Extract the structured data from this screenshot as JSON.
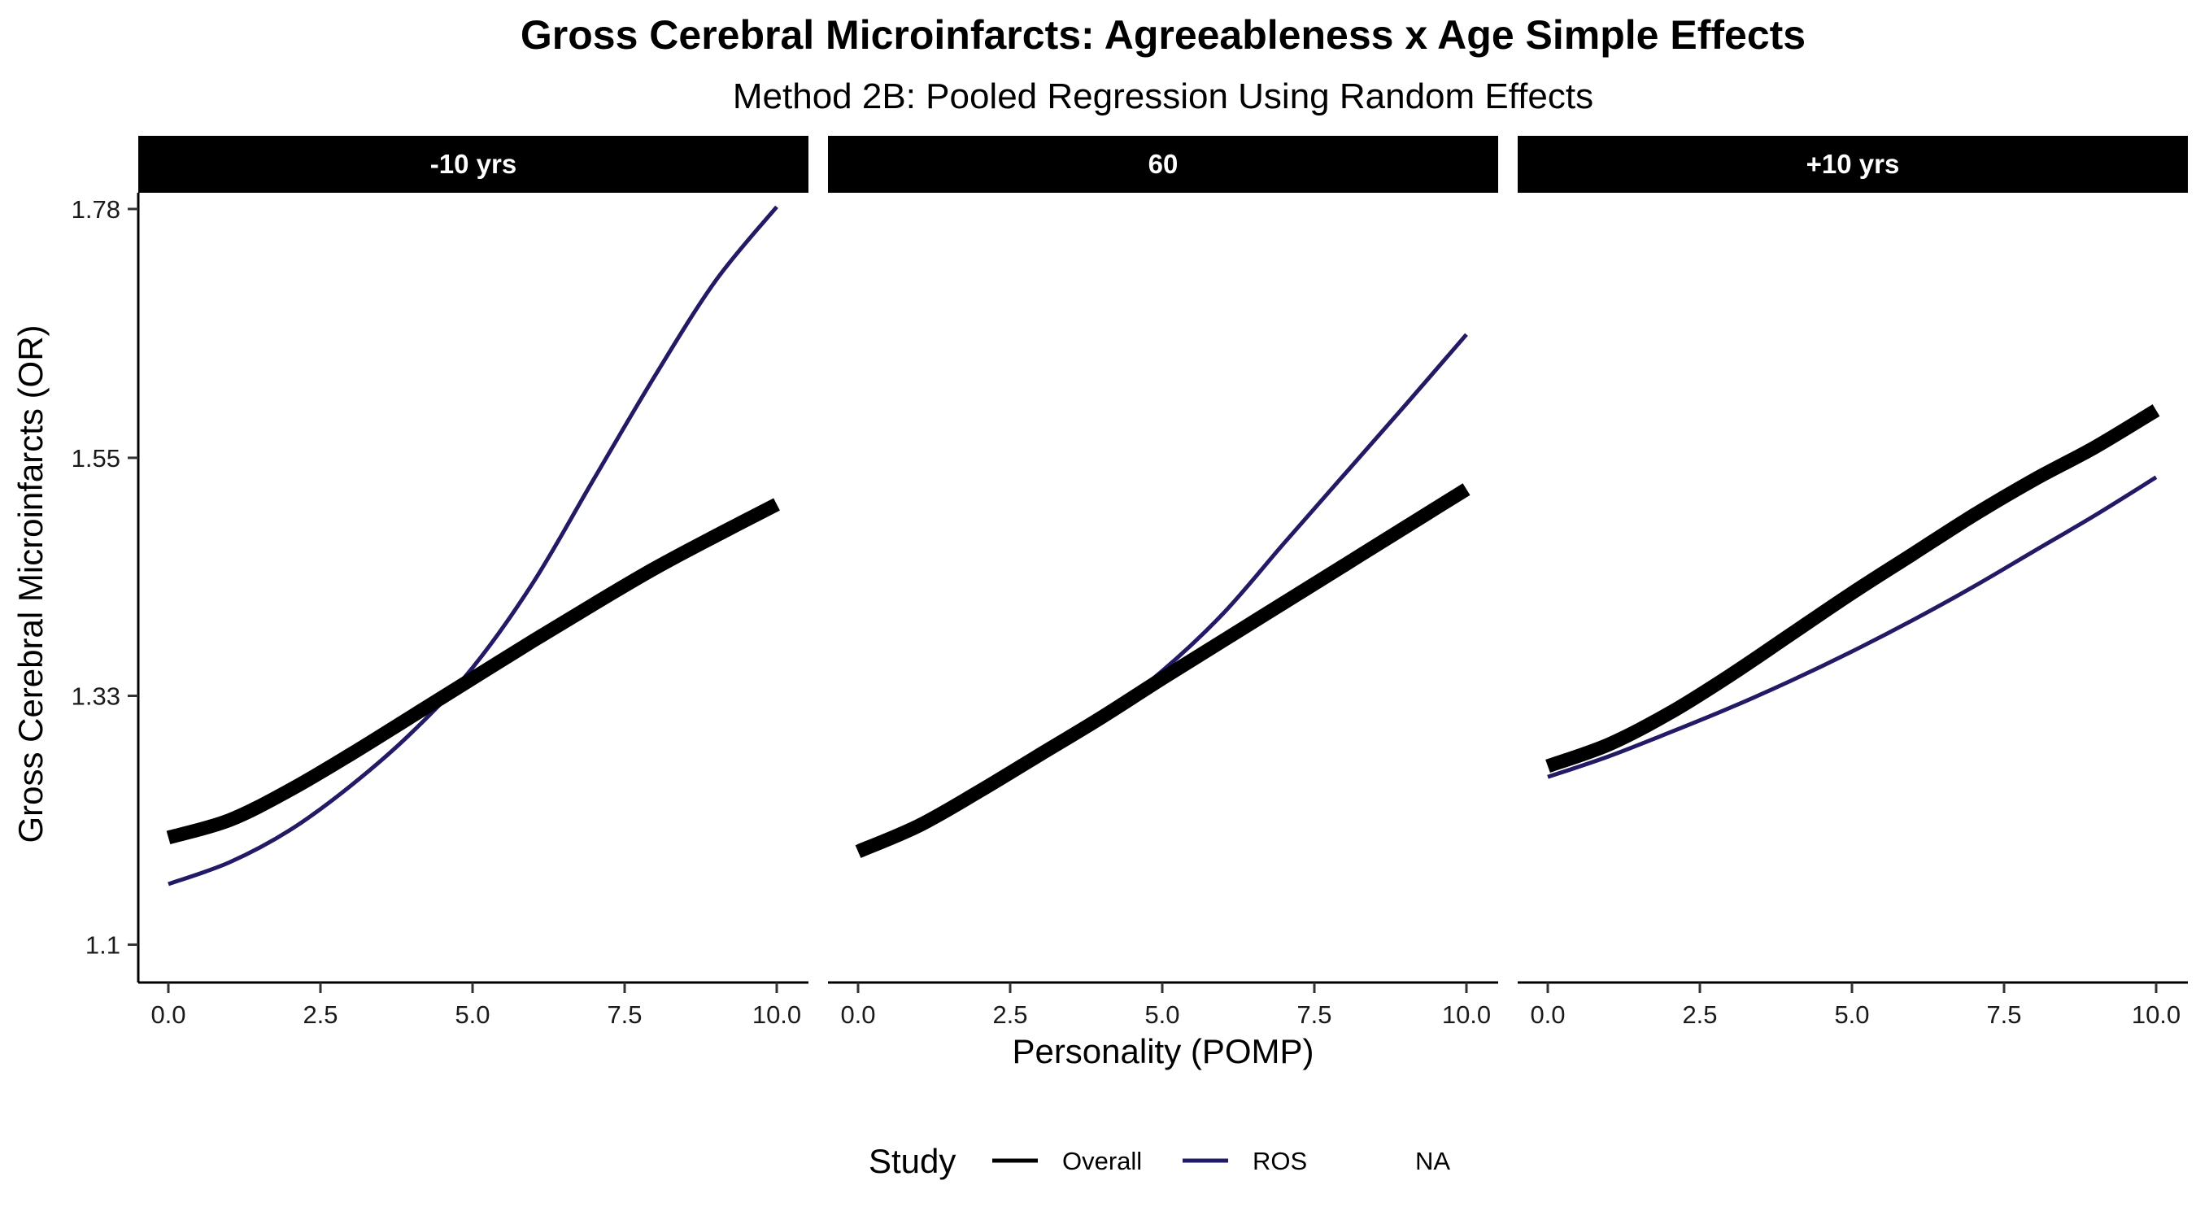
{
  "chart_data": {
    "type": "line",
    "title": "Gross Cerebral Microinfarcts: Agreeableness x Age Simple Effects",
    "subtitle": "Method 2B: Pooled Regression Using Random Effects",
    "xlabel": "Personality (POMP)",
    "ylabel": "Gross Cerebral Microinfarcts (OR)",
    "xlim": [
      0,
      10
    ],
    "ylim": [
      1.065,
      1.795
    ],
    "x_ticks": [
      "0.0",
      "2.5",
      "5.0",
      "7.5",
      "10.0"
    ],
    "y_ticks": [
      {
        "value": 1.1,
        "label": "1.1"
      },
      {
        "value": 1.33,
        "label": "1.33"
      },
      {
        "value": 1.55,
        "label": "1.55"
      },
      {
        "value": 1.78,
        "label": "1.78"
      }
    ],
    "grid": false,
    "x": [
      0,
      1,
      2,
      3,
      4,
      5,
      6,
      7,
      8,
      9,
      10
    ],
    "panels": [
      {
        "label": "-10 yrs",
        "series": [
          {
            "name": "Overall",
            "values": [
              1.199,
              1.215,
              1.243,
              1.276,
              1.311,
              1.346,
              1.381,
              1.415,
              1.448,
              1.478,
              1.507
            ]
          },
          {
            "name": "ROS",
            "values": [
              1.156,
              1.176,
              1.206,
              1.247,
              1.296,
              1.356,
              1.435,
              1.531,
              1.626,
              1.714,
              1.782
            ]
          }
        ]
      },
      {
        "label": "60",
        "series": [
          {
            "name": "Overall",
            "values": [
              1.186,
              1.21,
              1.242,
              1.276,
              1.31,
              1.346,
              1.381,
              1.416,
              1.451,
              1.486,
              1.521
            ]
          },
          {
            "name": "ROS",
            "values": [
              1.191,
              1.214,
              1.243,
              1.275,
              1.31,
              1.353,
              1.406,
              1.471,
              1.535,
              1.599,
              1.664
            ]
          }
        ]
      },
      {
        "label": "+10 yrs",
        "series": [
          {
            "name": "Overall",
            "values": [
              1.265,
              1.285,
              1.314,
              1.349,
              1.387,
              1.425,
              1.461,
              1.497,
              1.53,
              1.56,
              1.594
            ]
          },
          {
            "name": "ROS",
            "values": [
              1.255,
              1.274,
              1.296,
              1.319,
              1.344,
              1.371,
              1.4,
              1.431,
              1.464,
              1.497,
              1.532
            ]
          }
        ]
      }
    ],
    "legend": {
      "title": "Study",
      "position": "bottom",
      "entries": [
        {
          "label": "Overall",
          "color": "#000000",
          "line": true
        },
        {
          "label": "ROS",
          "color": "#231a66",
          "line": true
        },
        {
          "label": "NA",
          "color": "#ffffff",
          "line": false
        }
      ]
    },
    "colors": {
      "Overall": "#000000",
      "ROS": "#231a66",
      "strip": "#000000"
    }
  }
}
